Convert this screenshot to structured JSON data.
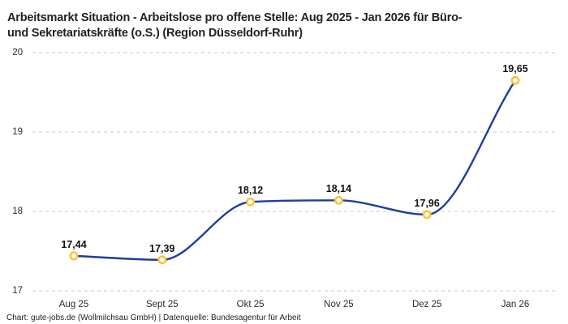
{
  "header": {
    "title_lines": [
      "Arbeitsmarkt Situation - Arbeitslose pro offene Stelle: Aug 2025 - Jan 2026 für Büro-",
      "und Sekretariatskräfte (o.S.) (Region Düsseldorf-Ruhr)"
    ]
  },
  "chart_data": {
    "type": "line",
    "title": "Arbeitsmarkt Situation - Arbeitslose pro offene Stelle: Aug 2025 - Jan 2026 für Büro- und Sekretariatskräfte (o.S.) (Region Düsseldorf-Ruhr)",
    "categories": [
      "Aug 25",
      "Sept 25",
      "Okt 25",
      "Nov 25",
      "Dez 25",
      "Jan 26"
    ],
    "values": [
      17.44,
      17.39,
      18.12,
      18.14,
      17.96,
      19.65
    ],
    "value_labels": [
      "17,44",
      "17,39",
      "18,12",
      "18,14",
      "17,96",
      "19,65"
    ],
    "yticks": [
      17,
      18,
      19,
      20
    ],
    "ytick_labels": [
      "17",
      "18",
      "19",
      "20"
    ],
    "ylim": [
      17,
      20
    ],
    "xlabel": "",
    "ylabel": "",
    "legend": "none",
    "grid": "horizontal-dashed",
    "line_color": "#1e3d9e",
    "marker_color": "#fbc237",
    "marker_fill": "#ffffff",
    "grid_color": "#c9c9c9"
  },
  "footer": {
    "credit": "Chart: gute-jobs.de (Wollmilchsau GmbH) | Datenquelle: Bundesagentur für Arbeit"
  }
}
